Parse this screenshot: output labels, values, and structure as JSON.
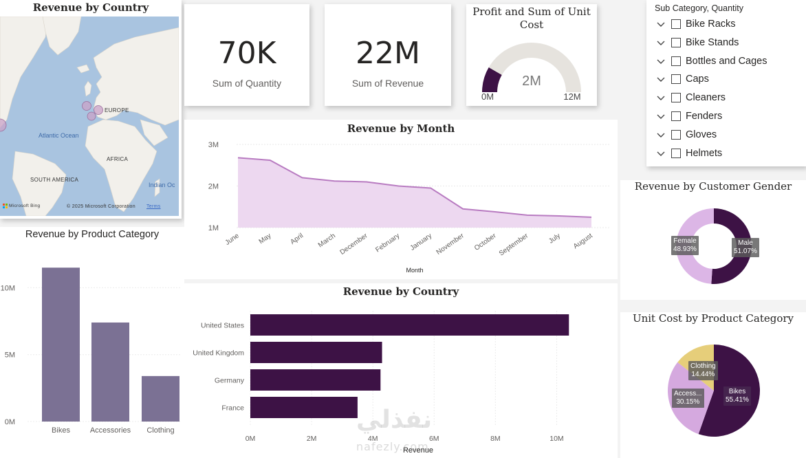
{
  "map": {
    "title": "Revenue by Country",
    "labels": {
      "europe": "EUROPE",
      "atlantic": "Atlantic Ocean",
      "africa": "AFRICA",
      "south_america": "SOUTH AMERICA",
      "indian": "Indian Oc"
    },
    "copyright": "© 2025 Microsoft Corporation",
    "terms": "Terms",
    "bing": "Microsoft Bing",
    "bubble_color": "#c9a3c8"
  },
  "kpi_quantity": {
    "value": "70K",
    "label": "Sum of Quantity"
  },
  "kpi_revenue": {
    "value": "22M",
    "label": "Sum of Revenue"
  },
  "gauge": {
    "title": "Profit and Sum of Unit Cost",
    "value_label": "2M",
    "min_label": "0M",
    "max_label": "12M",
    "value": 2,
    "max": 12,
    "fill_color": "#3d1245",
    "track_color": "#e6e3de"
  },
  "slicer": {
    "title": "Sub Category, Quantity",
    "items": [
      {
        "label": "Bike Racks"
      },
      {
        "label": "Bike Stands"
      },
      {
        "label": "Bottles and Cages"
      },
      {
        "label": "Caps"
      },
      {
        "label": "Cleaners"
      },
      {
        "label": "Fenders"
      },
      {
        "label": "Gloves"
      },
      {
        "label": "Helmets"
      }
    ]
  },
  "gender": {
    "title": "Revenue by Customer Gender",
    "female_label": "Female",
    "female_pct": "48.93%",
    "male_label": "Male",
    "male_pct": "51.07%"
  },
  "unit_cost": {
    "title": "Unit Cost by Product Category",
    "bikes_label": "Bikes",
    "bikes_pct": "55.41%",
    "acc_label": "Access...",
    "acc_pct": "30.15%",
    "clothing_label": "Clothing",
    "clothing_pct": "14.44%"
  },
  "month": {
    "title": "Revenue by Month",
    "xlabel": "Month",
    "y_ticks": [
      "3M",
      "2M",
      "1M"
    ]
  },
  "category": {
    "title": "Revenue by Product Category",
    "y_ticks": [
      "10M",
      "5M",
      "0M"
    ]
  },
  "country": {
    "title": "Revenue by Country",
    "xlabel": "Revenue",
    "x_ticks": [
      "0M",
      "2M",
      "4M",
      "6M",
      "8M",
      "10M"
    ]
  },
  "watermark": {
    "arabic": "نفذلي",
    "latin": "nafezly.com"
  },
  "chart_data": [
    {
      "type": "area",
      "title": "Revenue by Month",
      "xlabel": "Month",
      "ylabel": "",
      "categories": [
        "June",
        "May",
        "April",
        "March",
        "December",
        "February",
        "January",
        "November",
        "October",
        "September",
        "July",
        "August"
      ],
      "values": [
        2.68,
        2.62,
        2.2,
        2.12,
        2.1,
        2.0,
        1.95,
        1.45,
        1.38,
        1.3,
        1.28,
        1.25
      ],
      "unit": "M",
      "ylim": [
        1,
        3
      ],
      "color": "#b87bc1",
      "fill": "#edd8f0"
    },
    {
      "type": "bar",
      "title": "Revenue by Product Category",
      "categories": [
        "Bikes",
        "Accessories",
        "Clothing"
      ],
      "values": [
        11.5,
        7.4,
        3.4
      ],
      "unit": "M",
      "ylim": [
        0,
        13
      ],
      "color": "#7b7194"
    },
    {
      "type": "bar",
      "orientation": "horizontal",
      "title": "Revenue by Country",
      "xlabel": "Revenue",
      "categories": [
        "United States",
        "United Kingdom",
        "Germany",
        "France"
      ],
      "values": [
        10.4,
        4.3,
        4.25,
        3.5
      ],
      "unit": "M",
      "xlim": [
        0,
        11
      ],
      "color": "#3d1245"
    },
    {
      "type": "pie",
      "title": "Revenue by Customer Gender",
      "donut": true,
      "slices": [
        {
          "label": "Male",
          "value": 51.07,
          "color": "#3d1245"
        },
        {
          "label": "Female",
          "value": 48.93,
          "color": "#dcb6e6"
        }
      ]
    },
    {
      "type": "pie",
      "title": "Unit Cost by Product Category",
      "slices": [
        {
          "label": "Bikes",
          "value": 55.41,
          "color": "#3d1245"
        },
        {
          "label": "Accessories",
          "value": 30.15,
          "color": "#d5a9df"
        },
        {
          "label": "Clothing",
          "value": 14.44,
          "color": "#e6ce7a"
        }
      ]
    }
  ]
}
